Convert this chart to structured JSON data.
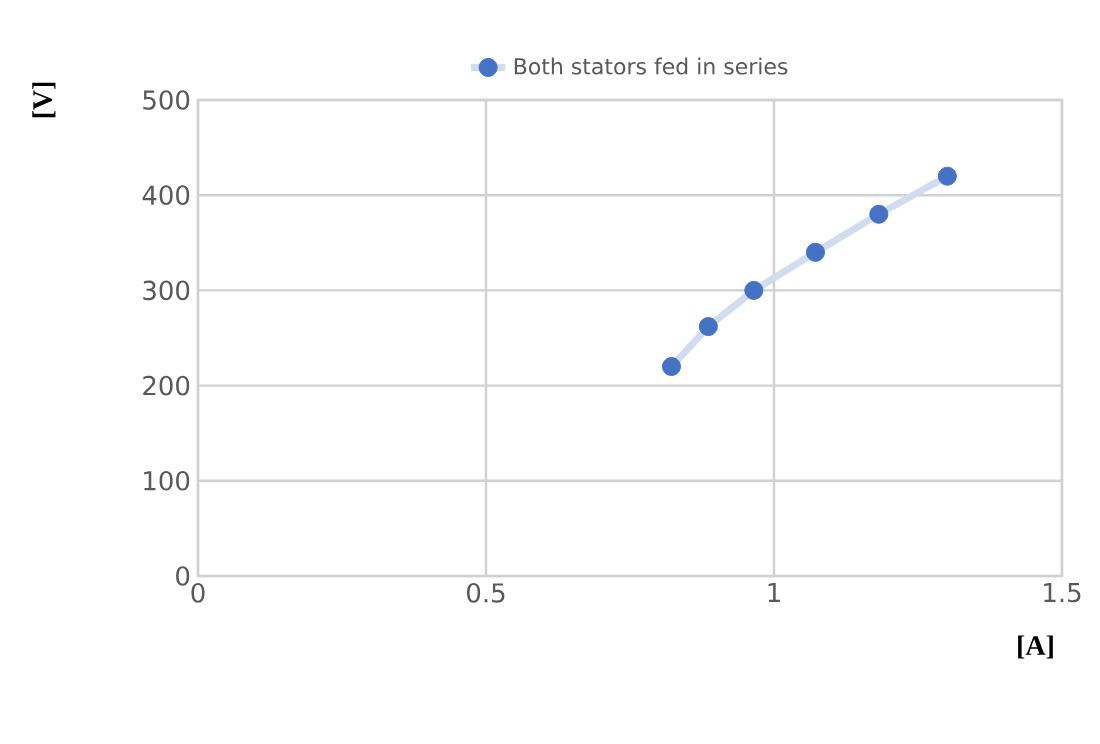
{
  "chart_data": {
    "type": "line",
    "xlabel": "[A]",
    "ylabel": "[V]",
    "xlim": [
      0,
      1.5
    ],
    "xticks": [
      0,
      0.5,
      1,
      1.5
    ],
    "ylim": [
      0,
      500
    ],
    "yticks": [
      0,
      100,
      200,
      300,
      400,
      500
    ],
    "grid": true,
    "legend": "top",
    "marker": "circle",
    "line_style": "solid",
    "series": [
      {
        "name": "Both stators fed in series",
        "color": "#4472c4",
        "x": [
          0.822,
          0.886,
          0.965,
          1.072,
          1.182,
          1.301
        ],
        "values": [
          220,
          262,
          300,
          340,
          380,
          420
        ]
      }
    ]
  }
}
